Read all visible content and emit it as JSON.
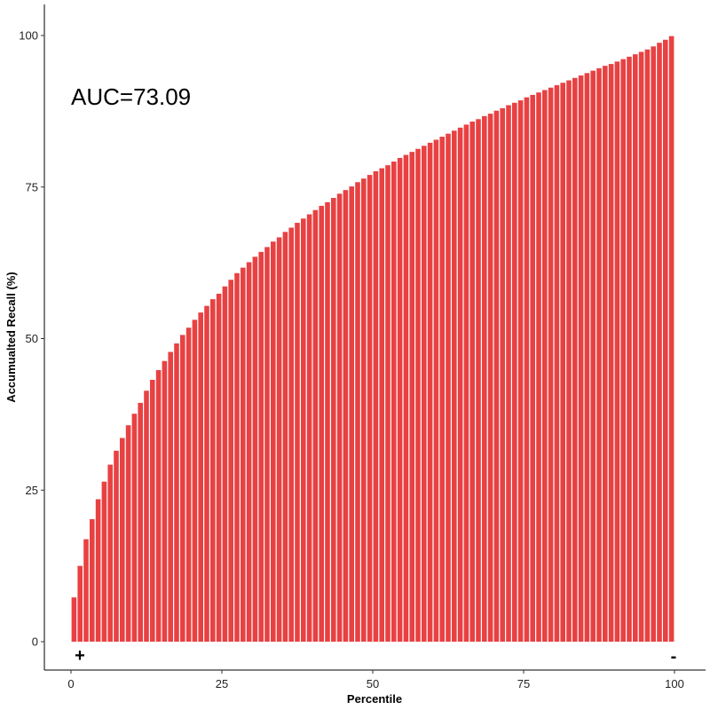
{
  "chart_data": {
    "type": "bar",
    "title": "",
    "xlabel": "Percentile",
    "ylabel": "Accumualted Recall (%)",
    "xlim": [
      0,
      100
    ],
    "ylim": [
      0,
      100
    ],
    "x_ticks": [
      "0",
      "25",
      "50",
      "75",
      "100"
    ],
    "y_ticks": [
      "0",
      "25",
      "50",
      "75",
      "100"
    ],
    "bar_color": "#E84142",
    "grid": false,
    "annotations": {
      "auc": "AUC=73.09",
      "left_sign": "+",
      "right_sign": "-"
    },
    "x": [
      1,
      2,
      3,
      4,
      5,
      6,
      7,
      8,
      9,
      10,
      11,
      12,
      13,
      14,
      15,
      16,
      17,
      18,
      19,
      20,
      21,
      22,
      23,
      24,
      25,
      26,
      27,
      28,
      29,
      30,
      31,
      32,
      33,
      34,
      35,
      36,
      37,
      38,
      39,
      40,
      41,
      42,
      43,
      44,
      45,
      46,
      47,
      48,
      49,
      50,
      51,
      52,
      53,
      54,
      55,
      56,
      57,
      58,
      59,
      60,
      61,
      62,
      63,
      64,
      65,
      66,
      67,
      68,
      69,
      70,
      71,
      72,
      73,
      74,
      75,
      76,
      77,
      78,
      79,
      80,
      81,
      82,
      83,
      84,
      85,
      86,
      87,
      88,
      89,
      90,
      91,
      92,
      93,
      94,
      95,
      96,
      97,
      98,
      99,
      100
    ],
    "values": [
      7.3,
      12.5,
      16.9,
      20.2,
      23.5,
      26.4,
      29.2,
      31.5,
      33.6,
      35.7,
      37.6,
      39.4,
      41.4,
      43.2,
      44.8,
      46.3,
      47.8,
      49.2,
      50.6,
      51.8,
      53.1,
      54.3,
      55.4,
      56.5,
      57.4,
      58.6,
      59.7,
      60.8,
      61.7,
      62.6,
      63.5,
      64.3,
      65.1,
      66.0,
      66.7,
      67.6,
      68.3,
      69.1,
      69.8,
      70.5,
      71.2,
      71.9,
      72.5,
      73.2,
      73.9,
      74.5,
      75.1,
      75.8,
      76.4,
      77.0,
      77.6,
      78.1,
      78.6,
      79.2,
      79.8,
      80.3,
      80.8,
      81.3,
      81.8,
      82.3,
      82.8,
      83.3,
      83.8,
      84.3,
      84.8,
      85.3,
      85.8,
      86.2,
      86.7,
      87.1,
      87.6,
      88.0,
      88.5,
      88.9,
      89.3,
      89.8,
      90.2,
      90.6,
      91.0,
      91.4,
      91.8,
      92.2,
      92.6,
      93.0,
      93.4,
      93.8,
      94.2,
      94.6,
      95.0,
      95.3,
      95.7,
      96.1,
      96.5,
      96.9,
      97.3,
      97.7,
      98.2,
      98.8,
      99.3,
      99.9
    ]
  }
}
